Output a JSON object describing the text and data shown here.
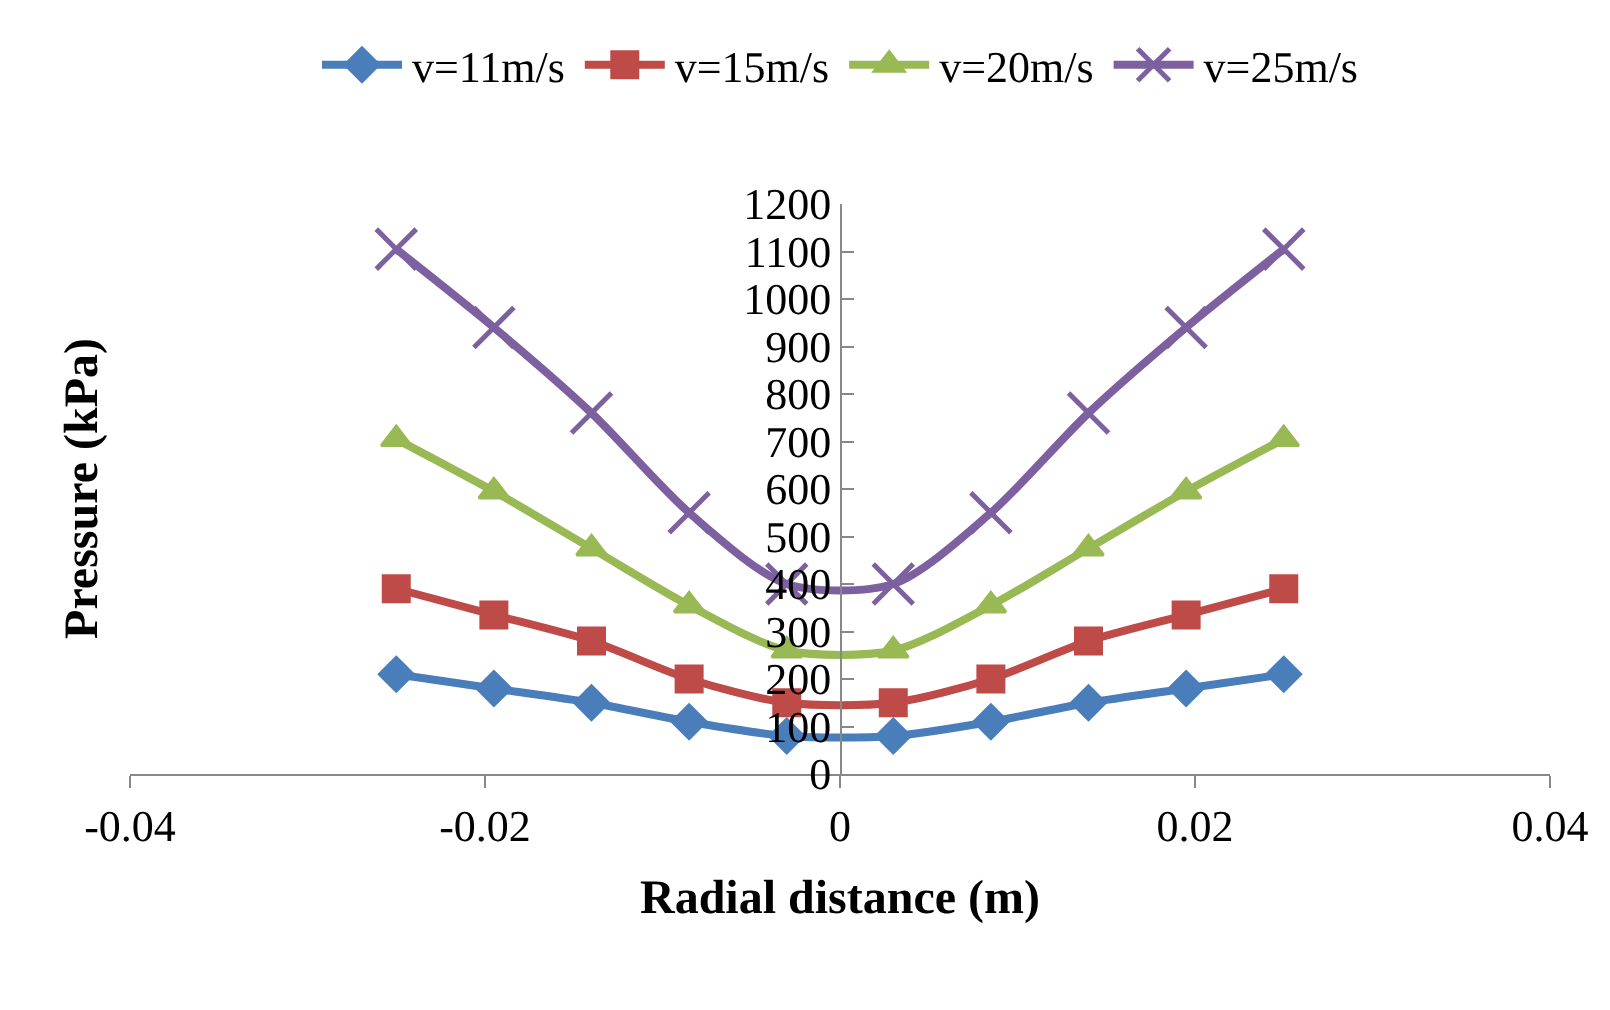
{
  "chart_data": {
    "type": "line",
    "xlabel": "Radial distance (m)",
    "ylabel": "Pressure (kPa)",
    "x": [
      -0.025,
      -0.0195,
      -0.014,
      -0.0085,
      -0.003,
      0.003,
      0.0085,
      0.014,
      0.0195,
      0.025
    ],
    "series": [
      {
        "name": "v=11m/s",
        "color": "#4a7ebb",
        "marker": "diamond",
        "values": [
          210,
          180,
          150,
          110,
          80,
          80,
          110,
          150,
          180,
          210
        ]
      },
      {
        "name": "v=15m/s",
        "color": "#be4b48",
        "marker": "square",
        "values": [
          390,
          335,
          280,
          200,
          150,
          150,
          200,
          280,
          335,
          390
        ]
      },
      {
        "name": "v=20m/s",
        "color": "#98b954",
        "marker": "triangle",
        "values": [
          705,
          595,
          475,
          355,
          260,
          260,
          355,
          475,
          595,
          705
        ]
      },
      {
        "name": "v=25m/s",
        "color": "#7d60a0",
        "marker": "cross",
        "values": [
          1105,
          940,
          760,
          550,
          400,
          400,
          550,
          760,
          940,
          1105
        ]
      }
    ],
    "xlim": [
      -0.04,
      0.04
    ],
    "xticks": [
      -0.04,
      -0.02,
      0,
      0.02,
      0.04
    ],
    "ylim": [
      0,
      1200
    ],
    "yticks": [
      0,
      100,
      200,
      300,
      400,
      500,
      600,
      700,
      800,
      900,
      1000,
      1100,
      1200
    ],
    "legend": "top"
  }
}
